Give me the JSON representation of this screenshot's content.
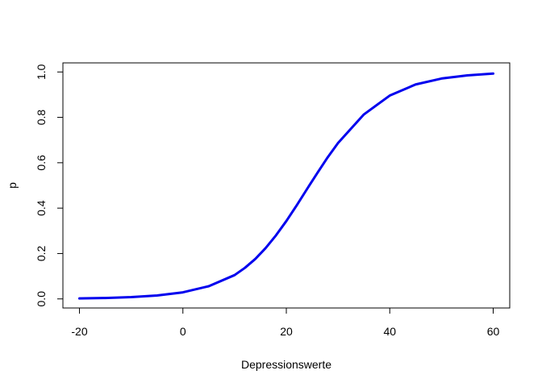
{
  "chart_data": {
    "type": "line",
    "title": "",
    "xlabel": "Depressionswerte",
    "ylabel": "p",
    "xlim": [
      -23.2,
      63.2
    ],
    "ylim": [
      -0.04,
      1.04
    ],
    "x_ticks": [
      -20,
      0,
      20,
      40,
      60
    ],
    "x_tick_labels": [
      "-20",
      "0",
      "20",
      "40",
      "60"
    ],
    "y_ticks": [
      0.0,
      0.2,
      0.4,
      0.6,
      0.8,
      1.0
    ],
    "y_tick_labels": [
      "0.0",
      "0.2",
      "0.4",
      "0.6",
      "0.8",
      "1.0"
    ],
    "grid": false,
    "legend": "none",
    "series": [
      {
        "color": "#0000ee",
        "x": [
          -20,
          -15,
          -10,
          -5,
          0,
          5,
          10,
          12,
          14,
          16,
          18,
          20,
          22,
          24,
          26,
          28,
          30,
          35,
          40,
          45,
          50,
          55,
          60
        ],
        "y": [
          0.002,
          0.004,
          0.008,
          0.015,
          0.029,
          0.056,
          0.105,
          0.137,
          0.176,
          0.224,
          0.28,
          0.343,
          0.412,
          0.484,
          0.555,
          0.624,
          0.687,
          0.813,
          0.896,
          0.945,
          0.971,
          0.985,
          0.993
        ]
      }
    ]
  }
}
